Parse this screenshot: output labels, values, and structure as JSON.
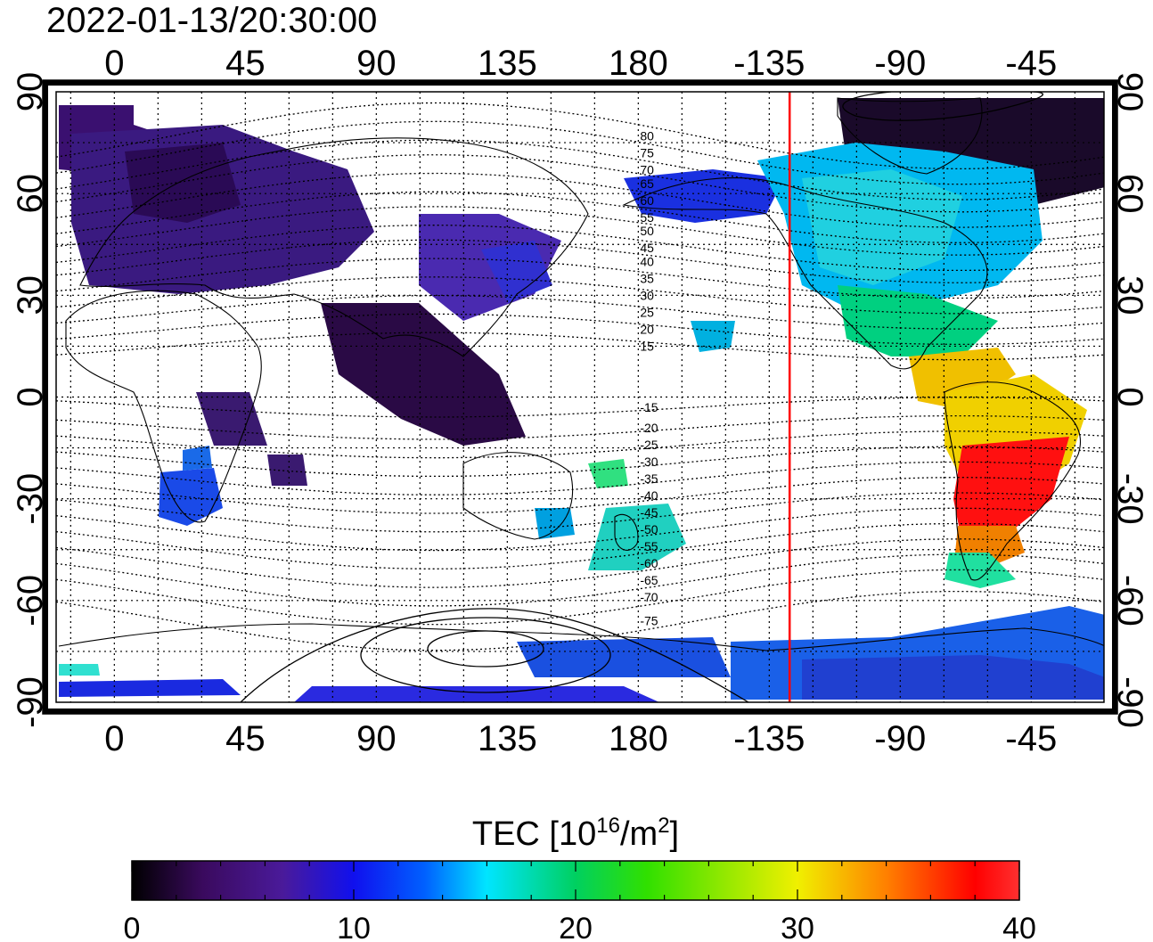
{
  "timestamp": "2022-01-13/20:30:00",
  "map": {
    "top_lon_labels": [
      "0",
      "45",
      "90",
      "135",
      "180",
      "-135",
      "-90",
      "-45"
    ],
    "bottom_lon_labels": [
      "0",
      "45",
      "90",
      "135",
      "180",
      "-135",
      "-90",
      "-45"
    ],
    "left_lat_labels": [
      "90",
      "60",
      "30",
      "0",
      "-30",
      "-60",
      "-90"
    ],
    "right_lat_labels": [
      "90",
      "60",
      "30",
      "0",
      "-30",
      "-60",
      "-90"
    ],
    "lon_ticks_deg": [
      0,
      45,
      90,
      135,
      180,
      225,
      270,
      315
    ],
    "lat_ticks_deg": [
      90,
      60,
      30,
      0,
      -30,
      -60,
      -90
    ],
    "lon_range_deg": [
      -20,
      340
    ],
    "lat_range_deg": [
      -90,
      90
    ],
    "grid": true,
    "red_line_lon_deg": -128,
    "contour_labels": [
      "80",
      "75",
      "70",
      "65",
      "60",
      "55",
      "50",
      "45",
      "40",
      "35",
      "30",
      "25",
      "20",
      "15",
      "-15",
      "-20",
      "-25",
      "-30",
      "-35",
      "-40",
      "-45",
      "-50",
      "-55",
      "-60",
      "-65",
      "-70",
      "-75"
    ],
    "contour_label_lats_deg": [
      77,
      72,
      67,
      63,
      58,
      53,
      49,
      44,
      40,
      35,
      30,
      25,
      20,
      15,
      -3,
      -9,
      -14,
      -19,
      -24,
      -29,
      -34,
      -39,
      -44,
      -49,
      -54,
      -59,
      -66
    ]
  },
  "colorbar": {
    "title_main": "TEC  [10",
    "title_sup1": "16",
    "title_mid": "/m",
    "title_sup2": "2",
    "title_end": "]",
    "tick_labels": [
      "0",
      "10",
      "20",
      "30",
      "40"
    ],
    "min": 0,
    "max": 40,
    "colors": [
      "#000000",
      "#3a0a5e",
      "#4a1a9a",
      "#1010ee",
      "#0060ff",
      "#00e5ff",
      "#00d060",
      "#30e000",
      "#f0f000",
      "#ff8000",
      "#ff0000",
      "#ff3030"
    ]
  }
}
